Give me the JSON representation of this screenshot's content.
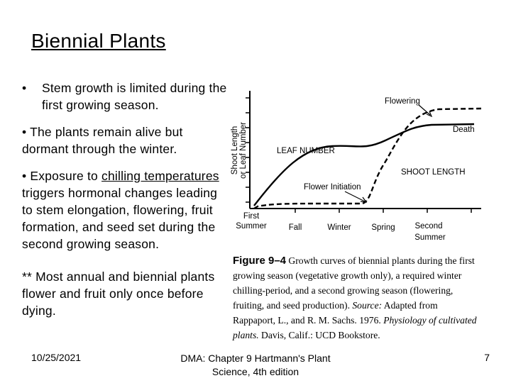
{
  "slide": {
    "title": "Biennial Plants",
    "bullet_symbol": "•",
    "bullet1_text": "Stem growth is limited during the first growing season.",
    "bullet2": "•  The plants remain alive but dormant through the winter.",
    "bullet3_prefix": "•  Exposure to ",
    "bullet3_underlined": "chilling temperatures",
    "bullet3_suffix": " triggers hormonal changes leading to stem elongation, flowering, fruit formation, and seed set during the second growing season.",
    "note": "** Most annual and biennial plants flower and fruit only once before dying."
  },
  "footer": {
    "date": "10/25/2021",
    "source": "DMA: Chapter 9 Hartmann's Plant Science, 4th edition",
    "page": "7"
  },
  "figure": {
    "y_axis_label_1": "Shoot Length",
    "y_axis_label_2": "or Leaf Number",
    "x_labels": [
      {
        "line1": "First",
        "line2": "Summer"
      },
      {
        "line1": "Fall",
        "line2": ""
      },
      {
        "line1": "Winter",
        "line2": ""
      },
      {
        "line1": "Spring",
        "line2": ""
      },
      {
        "line1": "Second",
        "line2": "Summer"
      }
    ],
    "leaf_label": "LEAF NUMBER",
    "shoot_label": "SHOOT LENGTH",
    "flowering_label": "Flowering",
    "death_label": "Death",
    "flower_initiation_label": "Flower Initiation",
    "caption_fig": "Figure 9–4",
    "caption_text": "  Growth curves of biennial plants during the first growing season (vegetative growth only), a required winter chilling-period, and a second growing season (flowering, fruiting, and seed production). ",
    "caption_source": "Source:",
    "caption_source_text": " Adapted from Rappaport, L., and R. M. Sachs. 1976. ",
    "caption_journal": "Physiology of cultivated plants.",
    "caption_end": " Davis, Calif.: UCD Bookstore."
  }
}
